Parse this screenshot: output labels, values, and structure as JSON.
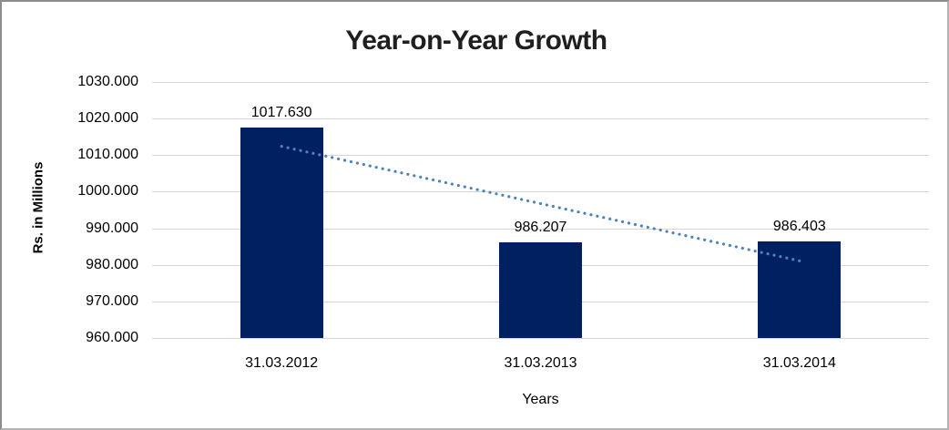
{
  "chart_data": {
    "type": "bar",
    "title": "Year-on-Year Growth",
    "xlabel": "Years",
    "ylabel": "Rs. in Millions",
    "categories": [
      "31.03.2012",
      "31.03.2013",
      "31.03.2014"
    ],
    "values": [
      1017.63,
      986.207,
      986.403
    ],
    "data_labels": [
      "1017.630",
      "986.207",
      "986.403"
    ],
    "ylim": [
      960,
      1030
    ],
    "ytick_step": 10,
    "ytick_labels": [
      "1030.000",
      "1020.000",
      "1010.000",
      "1000.000",
      "990.000",
      "980.000",
      "970.000",
      "960.000"
    ],
    "grid": true,
    "legend_position": "none",
    "bar_color": "#002060",
    "gridline_color": "#d5d5d5",
    "trendline": {
      "type": "linear",
      "style": "dotted",
      "color": "#4F81BD",
      "start_value": 1012.4,
      "end_value": 981.1
    }
  }
}
